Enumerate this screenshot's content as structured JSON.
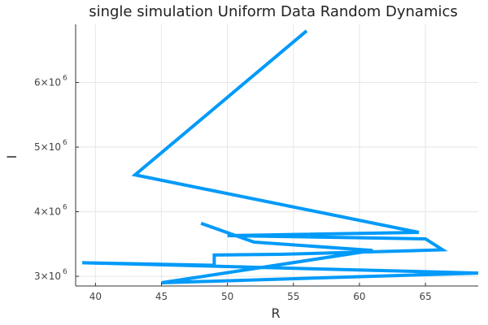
{
  "chart_data": {
    "type": "line",
    "title": "single simulation Uniform Data Random Dynamics",
    "xlabel": "R",
    "ylabel": "I",
    "xlim": [
      38.5,
      69.0
    ],
    "ylim": [
      2850000,
      6900000
    ],
    "x_ticks": [
      {
        "value": 40,
        "label": "40"
      },
      {
        "value": 45,
        "label": "45"
      },
      {
        "value": 50,
        "label": "50"
      },
      {
        "value": 55,
        "label": "55"
      },
      {
        "value": 60,
        "label": "60"
      },
      {
        "value": 65,
        "label": "65"
      }
    ],
    "y_ticks": [
      {
        "value": 3000000,
        "mantissa": "3×10",
        "exp": "6"
      },
      {
        "value": 4000000,
        "mantissa": "4×10",
        "exp": "6"
      },
      {
        "value": 5000000,
        "mantissa": "5×10",
        "exp": "6"
      },
      {
        "value": 6000000,
        "mantissa": "6×10",
        "exp": "6"
      }
    ],
    "grid": true,
    "legend": "none",
    "series": [
      {
        "color": "#009af9",
        "x": [
          56.0,
          43.0,
          64.5,
          50.0,
          65.0,
          66.3,
          54.0,
          49.0,
          49.0,
          39.0,
          69.0,
          45.0,
          61.0,
          52.0,
          48.0
        ],
        "y": [
          6800000,
          4570000,
          3680000,
          3630000,
          3580000,
          3410000,
          3340000,
          3330000,
          3170000,
          3210000,
          3050000,
          2900000,
          3400000,
          3530000,
          3820000
        ]
      }
    ]
  }
}
